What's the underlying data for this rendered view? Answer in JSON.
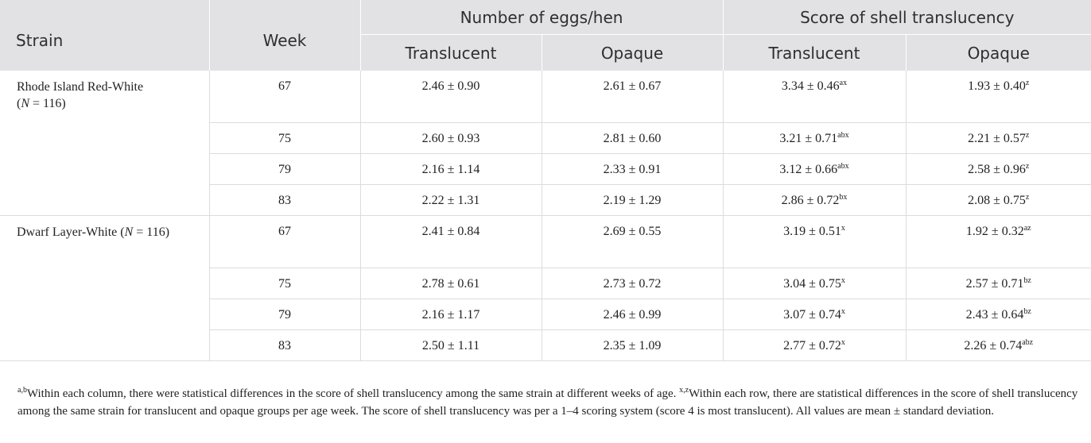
{
  "header": {
    "strain": "Strain",
    "week": "Week",
    "eggs_group": "Number of eggs/hen",
    "score_group": "Score of shell translucency",
    "sub": [
      "Translucent",
      "Opaque",
      "Translucent",
      "Opaque"
    ]
  },
  "strains": [
    {
      "name_prefix": "Rhode Island Red-White",
      "n_open": "(",
      "n_var": "N",
      "n_value": " = 116)",
      "rows": [
        {
          "week": "67",
          "eggs_t": "2.46 ± 0.90",
          "eggs_o": "2.61 ± 0.67",
          "score_t": "3.34 ± 0.46",
          "score_t_sup": "ax",
          "score_o": "1.93 ± 0.40",
          "score_o_sup": "z"
        },
        {
          "week": "75",
          "eggs_t": "2.60 ± 0.93",
          "eggs_o": "2.81 ± 0.60",
          "score_t": "3.21 ± 0.71",
          "score_t_sup": "abx",
          "score_o": "2.21 ± 0.57",
          "score_o_sup": "z"
        },
        {
          "week": "79",
          "eggs_t": "2.16 ± 1.14",
          "eggs_o": "2.33 ± 0.91",
          "score_t": "3.12 ± 0.66",
          "score_t_sup": "abx",
          "score_o": "2.58 ± 0.96",
          "score_o_sup": "z"
        },
        {
          "week": "83",
          "eggs_t": "2.22 ± 1.31",
          "eggs_o": "2.19 ± 1.29",
          "score_t": "2.86 ± 0.72",
          "score_t_sup": "bx",
          "score_o": "2.08 ± 0.75",
          "score_o_sup": "z"
        }
      ]
    },
    {
      "name_prefix": "Dwarf Layer-White (",
      "n_open": "",
      "n_var": "N",
      "n_value": " = 116)",
      "rows": [
        {
          "week": "67",
          "eggs_t": "2.41 ± 0.84",
          "eggs_o": "2.69 ± 0.55",
          "score_t": "3.19 ± 0.51",
          "score_t_sup": "x",
          "score_o": "1.92 ± 0.32",
          "score_o_sup": "az"
        },
        {
          "week": "75",
          "eggs_t": "2.78 ± 0.61",
          "eggs_o": "2.73 ± 0.72",
          "score_t": "3.04 ± 0.75",
          "score_t_sup": "x",
          "score_o": "2.57 ± 0.71",
          "score_o_sup": "bz"
        },
        {
          "week": "79",
          "eggs_t": "2.16 ± 1.17",
          "eggs_o": "2.46 ± 0.99",
          "score_t": "3.07 ± 0.74",
          "score_t_sup": "x",
          "score_o": "2.43 ± 0.64",
          "score_o_sup": "bz"
        },
        {
          "week": "83",
          "eggs_t": "2.50 ± 1.11",
          "eggs_o": "2.35 ± 1.09",
          "score_t": "2.77 ± 0.72",
          "score_t_sup": "x",
          "score_o": "2.26 ± 0.74",
          "score_o_sup": "abz"
        }
      ]
    }
  ],
  "footnote": {
    "sup1": "a,b",
    "text1": "Within each column, there were statistical differences in the score of shell translucency among the same strain at different weeks of age. ",
    "sup2": "x,z",
    "text2": "Within each row, there are statistical differences in the score of shell translucency among the same strain for translucent and opaque groups per age week. The score of shell translucency was per a 1–4 scoring system (score 4 is most translucent). All values are mean ± standard deviation."
  }
}
